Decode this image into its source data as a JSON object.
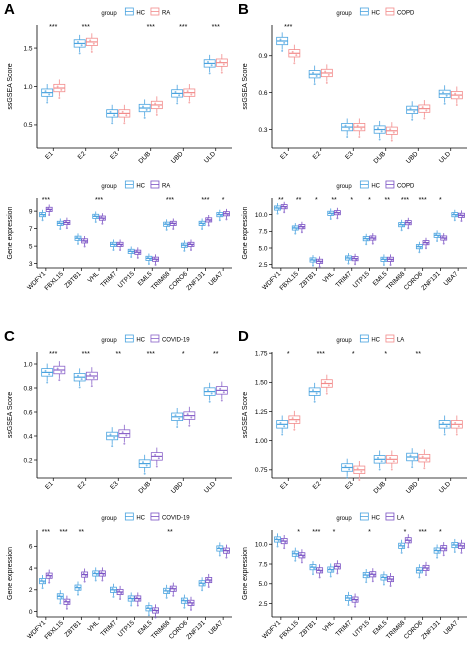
{
  "colors": {
    "hc": "#4aa3df",
    "ra": "#f28b8b",
    "copd": "#f28b8b",
    "covid": "#8a63c9",
    "la": "#f28b8b",
    "purple": "#7b52c4",
    "axis": "#000000",
    "sig": "#000000"
  },
  "chart_data": [
    {
      "panel": "A",
      "type": "box",
      "legend": {
        "title": "group",
        "entries": [
          "HC",
          "RA"
        ]
      },
      "ylabel": "ssGSEA Score",
      "ylim": [
        0.2,
        1.8
      ],
      "yticks": [
        "0.5",
        "1.0",
        "1.5"
      ],
      "categories": [
        "E1",
        "E2",
        "E3",
        "DUB",
        "UBD",
        "ULD"
      ],
      "significance": [
        "***",
        "***",
        "",
        "***",
        "***",
        "***"
      ],
      "series": [
        {
          "name": "HC",
          "values": [
            0.92,
            1.56,
            0.65,
            0.72,
            0.91,
            1.3
          ]
        },
        {
          "name": "RA",
          "values": [
            0.98,
            1.58,
            0.65,
            0.76,
            0.92,
            1.31
          ]
        }
      ]
    },
    {
      "panel": "A2",
      "type": "box",
      "legend": {
        "title": "group",
        "entries": [
          "HC",
          "RA"
        ]
      },
      "ylabel": "Gene expression",
      "ylim": [
        2.5,
        10.5
      ],
      "yticks": [
        "3",
        "5",
        "7",
        "9"
      ],
      "categories": [
        "WDFY1",
        "FBXL15",
        "ZBTB1",
        "VHL",
        "TRIM7",
        "UTP15",
        "EML5",
        "TRIM68",
        "CORO6",
        "ZNF131",
        "UBA7"
      ],
      "significance": [
        "***",
        "",
        "",
        "***",
        "",
        "",
        "",
        "***",
        "",
        "***",
        "*"
      ],
      "series": [
        {
          "name": "HC",
          "values": [
            8.6,
            7.6,
            5.9,
            8.4,
            5.2,
            4.4,
            3.6,
            7.5,
            5.1,
            7.6,
            8.6
          ]
        },
        {
          "name": "RA",
          "values": [
            9.2,
            7.7,
            5.6,
            8.2,
            5.2,
            4.3,
            3.5,
            7.6,
            5.2,
            8.0,
            8.7
          ]
        }
      ]
    },
    {
      "panel": "B",
      "type": "box",
      "legend": {
        "title": "group",
        "entries": [
          "HC",
          "COPD"
        ]
      },
      "ylabel": "ssGSEA Score",
      "ylim": [
        0.15,
        1.15
      ],
      "yticks": [
        "0.3",
        "0.6",
        "0.9"
      ],
      "categories": [
        "E1",
        "E2",
        "E3",
        "DUB",
        "UBD",
        "ULD"
      ],
      "significance": [
        "***",
        "",
        "",
        "",
        "",
        ""
      ],
      "series": [
        {
          "name": "HC",
          "values": [
            1.02,
            0.75,
            0.32,
            0.3,
            0.46,
            0.59
          ]
        },
        {
          "name": "COPD",
          "values": [
            0.92,
            0.76,
            0.32,
            0.29,
            0.47,
            0.58
          ]
        }
      ]
    },
    {
      "panel": "B2",
      "type": "box",
      "legend": {
        "title": "group",
        "entries": [
          "HC",
          "COPD"
        ]
      },
      "ylabel": "Gene expression",
      "ylim": [
        2.0,
        12.5
      ],
      "yticks": [
        "2.5",
        "5.0",
        "7.5",
        "10.0"
      ],
      "categories": [
        "WDFY1",
        "FBXL15",
        "ZBTB1",
        "VHL",
        "TRIM7",
        "UTP15",
        "EML5",
        "TRIM68",
        "CORO6",
        "ZNF131",
        "UBA7"
      ],
      "significance": [
        "**",
        "**",
        "*",
        "**",
        "*",
        "*",
        "**",
        "***",
        "***",
        "*",
        ""
      ],
      "series": [
        {
          "name": "HC",
          "values": [
            11.0,
            8.0,
            3.2,
            10.2,
            3.5,
            6.4,
            3.3,
            8.5,
            5.2,
            6.9,
            10.0
          ]
        },
        {
          "name": "COPD",
          "values": [
            11.2,
            8.2,
            3.0,
            10.3,
            3.4,
            6.5,
            3.3,
            8.8,
            5.8,
            6.5,
            9.9
          ]
        }
      ]
    },
    {
      "panel": "C",
      "type": "box",
      "legend": {
        "title": "group",
        "entries": [
          "HC",
          "COVID-19"
        ]
      },
      "ylabel": "ssGSEA Score",
      "ylim": [
        0.05,
        1.1
      ],
      "yticks": [
        "0.2",
        "0.4",
        "0.6",
        "0.8",
        "1.0"
      ],
      "categories": [
        "E1",
        "E2",
        "E3",
        "DUB",
        "UBD",
        "ULD"
      ],
      "significance": [
        "***",
        "***",
        "**",
        "***",
        "*",
        "**"
      ],
      "series": [
        {
          "name": "HC",
          "values": [
            0.93,
            0.89,
            0.4,
            0.17,
            0.56,
            0.77
          ]
        },
        {
          "name": "COVID-19",
          "values": [
            0.95,
            0.9,
            0.42,
            0.23,
            0.57,
            0.78
          ]
        }
      ]
    },
    {
      "panel": "C2",
      "type": "box",
      "legend": {
        "title": "group",
        "entries": [
          "HC",
          "COVID-19"
        ]
      },
      "ylabel": "Gene expression",
      "ylim": [
        -0.5,
        7.5
      ],
      "yticks": [
        "0",
        "2",
        "4",
        "6"
      ],
      "categories": [
        "WDFY1",
        "FBXL15",
        "ZBTB1",
        "VHL",
        "TRIM7",
        "UTP15",
        "EML5",
        "TRIM68",
        "CORO6",
        "ZNF131",
        "UBA7"
      ],
      "significance": [
        "***",
        "***",
        "**",
        "",
        "",
        "",
        "",
        "**",
        "",
        "",
        ""
      ],
      "series": [
        {
          "name": "HC",
          "values": [
            2.8,
            1.4,
            2.2,
            3.5,
            2.0,
            1.2,
            0.3,
            1.9,
            1.0,
            2.6,
            5.8
          ]
        },
        {
          "name": "COVID-19",
          "values": [
            3.3,
            0.9,
            3.4,
            3.5,
            1.8,
            1.2,
            0.1,
            2.1,
            0.8,
            2.9,
            5.6
          ]
        }
      ]
    },
    {
      "panel": "D",
      "type": "box",
      "legend": {
        "title": "group",
        "entries": [
          "HC",
          "LA"
        ]
      },
      "ylabel": "ssGSEA Score",
      "ylim": [
        0.68,
        1.76
      ],
      "yticks": [
        "0.75",
        "1.00",
        "1.25",
        "1.50",
        "1.75"
      ],
      "categories": [
        "E1",
        "E2",
        "E3",
        "DUB",
        "UBD",
        "ULD"
      ],
      "significance": [
        "*",
        "***",
        "*",
        "*",
        "**",
        ""
      ],
      "series": [
        {
          "name": "HC",
          "values": [
            1.14,
            1.42,
            0.77,
            0.84,
            0.86,
            1.14
          ]
        },
        {
          "name": "LA",
          "values": [
            1.18,
            1.49,
            0.75,
            0.84,
            0.85,
            1.14
          ]
        }
      ]
    },
    {
      "panel": "D2",
      "type": "box",
      "legend": {
        "title": "group",
        "entries": [
          "HC",
          "LA"
        ]
      },
      "ylabel": "Gene expression",
      "ylim": [
        0.8,
        11.8
      ],
      "yticks": [
        "2.5",
        "5.0",
        "7.5",
        "10.0"
      ],
      "categories": [
        "WDFY1",
        "FBXL15",
        "ZBTB1",
        "VHL",
        "TRIM7",
        "UTP15",
        "EML5",
        "TRIM68",
        "CORO6",
        "ZNF131",
        "UBA7"
      ],
      "significance": [
        "",
        "*",
        "***",
        "*",
        "",
        "*",
        "",
        "*",
        "***",
        "*",
        ""
      ],
      "series": [
        {
          "name": "HC",
          "values": [
            10.6,
            8.8,
            7.1,
            6.8,
            3.2,
            6.1,
            5.8,
            9.8,
            6.7,
            9.2,
            9.9
          ]
        },
        {
          "name": "LA",
          "values": [
            10.4,
            8.6,
            6.7,
            7.2,
            3.0,
            6.2,
            5.6,
            10.5,
            7.0,
            9.5,
            9.8
          ]
        }
      ]
    }
  ]
}
